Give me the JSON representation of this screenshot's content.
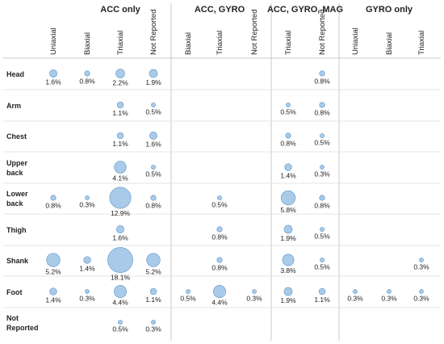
{
  "chart_data": {
    "type": "bubble-matrix",
    "groups": [
      {
        "name": "ACC only",
        "columns": [
          "Uniaxial",
          "Biaxial",
          "Triaxial",
          "Not Reported"
        ]
      },
      {
        "name": "ACC, GYRO",
        "columns": [
          "Biaxial",
          "Triaxial",
          "Not Reported"
        ]
      },
      {
        "name": "ACC, GYRO, MAG",
        "columns": [
          "Triaxial",
          "Not Reported"
        ]
      },
      {
        "name": "GYRO only",
        "columns": [
          "Uniaxial",
          "Biaxial",
          "Triaxial"
        ]
      }
    ],
    "rows": [
      {
        "label": [
          "Head"
        ]
      },
      {
        "label": [
          "Arm"
        ]
      },
      {
        "label": [
          "Chest"
        ]
      },
      {
        "label": [
          "Upper",
          "back"
        ]
      },
      {
        "label": [
          "Lower",
          "back"
        ]
      },
      {
        "label": [
          "Thigh"
        ]
      },
      {
        "label": [
          "Shank"
        ]
      },
      {
        "label": [
          "Foot"
        ]
      },
      {
        "label": [
          "Not",
          "Reported"
        ]
      }
    ],
    "cells": [
      {
        "row": 0,
        "col": 0,
        "value": 1.6,
        "label": "1.6%"
      },
      {
        "row": 0,
        "col": 1,
        "value": 0.8,
        "label": "0.8%"
      },
      {
        "row": 0,
        "col": 2,
        "value": 2.2,
        "label": "2.2%"
      },
      {
        "row": 0,
        "col": 3,
        "value": 1.9,
        "label": "1.9%"
      },
      {
        "row": 0,
        "col": 8,
        "value": 0.8,
        "label": "0.8%"
      },
      {
        "row": 1,
        "col": 2,
        "value": 1.1,
        "label": "1.1%"
      },
      {
        "row": 1,
        "col": 3,
        "value": 0.5,
        "label": "0.5%"
      },
      {
        "row": 1,
        "col": 7,
        "value": 0.5,
        "label": "0.5%"
      },
      {
        "row": 1,
        "col": 8,
        "value": 0.8,
        "label": "0.8%"
      },
      {
        "row": 2,
        "col": 2,
        "value": 1.1,
        "label": "1.1%"
      },
      {
        "row": 2,
        "col": 3,
        "value": 1.6,
        "label": "1.6%"
      },
      {
        "row": 2,
        "col": 7,
        "value": 0.8,
        "label": "0.8%"
      },
      {
        "row": 2,
        "col": 8,
        "value": 0.5,
        "label": "0.5%"
      },
      {
        "row": 3,
        "col": 2,
        "value": 4.1,
        "label": "4.1%"
      },
      {
        "row": 3,
        "col": 3,
        "value": 0.5,
        "label": "0.5%"
      },
      {
        "row": 3,
        "col": 7,
        "value": 1.4,
        "label": "1.4%"
      },
      {
        "row": 3,
        "col": 8,
        "value": 0.3,
        "label": "0.3%"
      },
      {
        "row": 4,
        "col": 0,
        "value": 0.8,
        "label": "0.8%"
      },
      {
        "row": 4,
        "col": 1,
        "value": 0.3,
        "label": "0.3%"
      },
      {
        "row": 4,
        "col": 2,
        "value": 12.9,
        "label": "12.9%"
      },
      {
        "row": 4,
        "col": 3,
        "value": 0.8,
        "label": "0.8%"
      },
      {
        "row": 4,
        "col": 5,
        "value": 0.5,
        "label": "0.5%"
      },
      {
        "row": 4,
        "col": 7,
        "value": 5.8,
        "label": "5.8%"
      },
      {
        "row": 4,
        "col": 8,
        "value": 0.8,
        "label": "0.8%"
      },
      {
        "row": 5,
        "col": 2,
        "value": 1.6,
        "label": "1.6%"
      },
      {
        "row": 5,
        "col": 5,
        "value": 0.8,
        "label": "0.8%"
      },
      {
        "row": 5,
        "col": 7,
        "value": 1.9,
        "label": "1.9%"
      },
      {
        "row": 5,
        "col": 8,
        "value": 0.5,
        "label": "0.5%"
      },
      {
        "row": 6,
        "col": 0,
        "value": 5.2,
        "label": "5.2%"
      },
      {
        "row": 6,
        "col": 1,
        "value": 1.4,
        "label": "1.4%"
      },
      {
        "row": 6,
        "col": 2,
        "value": 18.1,
        "label": "18.1%"
      },
      {
        "row": 6,
        "col": 3,
        "value": 5.2,
        "label": "5.2%"
      },
      {
        "row": 6,
        "col": 5,
        "value": 0.8,
        "label": "0.8%"
      },
      {
        "row": 6,
        "col": 7,
        "value": 3.8,
        "label": "3.8%"
      },
      {
        "row": 6,
        "col": 8,
        "value": 0.5,
        "label": "0.5%"
      },
      {
        "row": 6,
        "col": 11,
        "value": 0.3,
        "label": "0.3%"
      },
      {
        "row": 7,
        "col": 0,
        "value": 1.4,
        "label": "1.4%"
      },
      {
        "row": 7,
        "col": 1,
        "value": 0.3,
        "label": "0.3%"
      },
      {
        "row": 7,
        "col": 2,
        "value": 4.4,
        "label": "4.4%"
      },
      {
        "row": 7,
        "col": 3,
        "value": 1.1,
        "label": "1.1%"
      },
      {
        "row": 7,
        "col": 4,
        "value": 0.5,
        "label": "0.5%"
      },
      {
        "row": 7,
        "col": 5,
        "value": 4.4,
        "label": "4.4%"
      },
      {
        "row": 7,
        "col": 6,
        "value": 0.3,
        "label": "0.3%"
      },
      {
        "row": 7,
        "col": 7,
        "value": 1.9,
        "label": "1.9%"
      },
      {
        "row": 7,
        "col": 8,
        "value": 1.1,
        "label": "1.1%"
      },
      {
        "row": 7,
        "col": 9,
        "value": 0.3,
        "label": "0.3%"
      },
      {
        "row": 7,
        "col": 10,
        "value": 0.3,
        "label": "0.3%"
      },
      {
        "row": 7,
        "col": 11,
        "value": 0.3,
        "label": "0.3%"
      },
      {
        "row": 8,
        "col": 2,
        "value": 0.5,
        "label": "0.5%"
      },
      {
        "row": 8,
        "col": 3,
        "value": 0.3,
        "label": "0.3%"
      }
    ],
    "size_encoding": "bubble area proportional to percentage",
    "grid": false,
    "colors": {
      "bubble_fill": "#a9cbe9",
      "bubble_stroke": "#6b9ec8",
      "separator": "#c8c8c8"
    }
  }
}
